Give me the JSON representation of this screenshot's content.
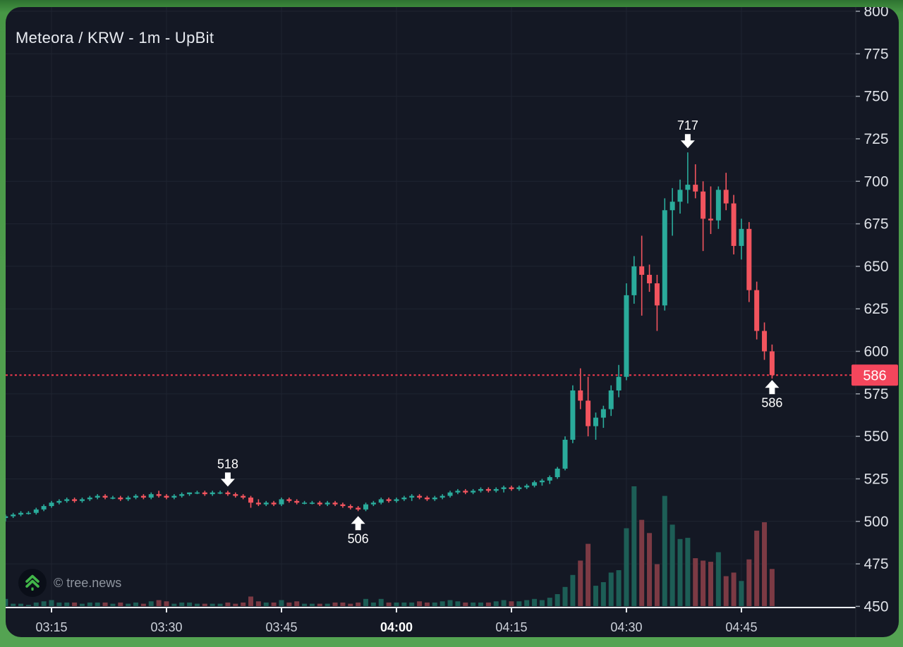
{
  "header": {
    "title": "Meteora / KRW - 1m - UpBit"
  },
  "watermark": {
    "text": "© tree.news",
    "logo": "tree-chevrons-icon"
  },
  "chart_data": {
    "type": "candlestick",
    "symbol": "Meteora / KRW",
    "interval": "1m",
    "exchange": "UpBit",
    "title": "Meteora / KRW - 1m - UpBit",
    "last_price": 586,
    "last_price_label": "586",
    "y_axis": {
      "min": 450,
      "max": 800,
      "step": 25,
      "ticks": [
        800,
        775,
        750,
        725,
        700,
        675,
        650,
        625,
        600,
        575,
        550,
        525,
        500,
        475,
        450
      ]
    },
    "x_axis": {
      "ticks": [
        {
          "label": "03:15",
          "bold": false
        },
        {
          "label": "03:30",
          "bold": false
        },
        {
          "label": "03:45",
          "bold": false
        },
        {
          "label": "04:00",
          "bold": true
        },
        {
          "label": "04:15",
          "bold": false
        },
        {
          "label": "04:30",
          "bold": false
        },
        {
          "label": "04:45",
          "bold": false
        }
      ]
    },
    "annotations": [
      {
        "text": "717",
        "time": "04:38",
        "price": 717,
        "direction": "down"
      },
      {
        "text": "518",
        "time": "03:38",
        "price": 518,
        "direction": "down"
      },
      {
        "text": "506",
        "time": "03:55",
        "price": 506,
        "direction": "up"
      },
      {
        "text": "586",
        "time": "04:49",
        "price": 586,
        "direction": "up"
      }
    ],
    "colors": {
      "background": "#141824",
      "grid": "#1f2431",
      "axis_line": "#eceef2",
      "up": "#2aab9b",
      "down": "#f2545e",
      "volume_up": "#1d5e56",
      "volume_down": "#7c3a44",
      "dotted_line": "#f43a4e",
      "badge_bg": "#f4465c",
      "badge_text": "#ffffff",
      "y_label": "#dfe2e8",
      "x_label": "#ccd0d9",
      "x_label_bold": "#ffffff",
      "annotation": "#ffffff"
    },
    "candles": [
      [
        "03:09",
        502,
        504,
        500,
        503,
        6
      ],
      [
        "03:10",
        503,
        505,
        502,
        504,
        2
      ],
      [
        "03:11",
        504,
        506,
        503,
        505,
        2
      ],
      [
        "03:12",
        505,
        506,
        504,
        505,
        1
      ],
      [
        "03:13",
        505,
        508,
        504,
        507,
        3
      ],
      [
        "03:14",
        507,
        510,
        506,
        509,
        4
      ],
      [
        "03:15",
        509,
        512,
        508,
        511,
        5
      ],
      [
        "03:16",
        511,
        513,
        510,
        512,
        3
      ],
      [
        "03:17",
        512,
        514,
        511,
        513,
        3
      ],
      [
        "03:18",
        513,
        514,
        511,
        512,
        3
      ],
      [
        "03:19",
        512,
        514,
        511,
        513,
        2
      ],
      [
        "03:20",
        513,
        515,
        512,
        514,
        3
      ],
      [
        "03:21",
        514,
        516,
        513,
        515,
        3
      ],
      [
        "03:22",
        515,
        516,
        513,
        514,
        3
      ],
      [
        "03:23",
        514,
        515,
        513,
        514,
        2
      ],
      [
        "03:24",
        514,
        515,
        512,
        513,
        3
      ],
      [
        "03:25",
        513,
        515,
        512,
        514,
        2
      ],
      [
        "03:26",
        514,
        516,
        513,
        515,
        3
      ],
      [
        "03:27",
        515,
        516,
        513,
        514,
        2
      ],
      [
        "03:28",
        514,
        517,
        513,
        516,
        4
      ],
      [
        "03:29",
        516,
        518,
        514,
        515,
        5
      ],
      [
        "03:30",
        515,
        516,
        513,
        514,
        4
      ],
      [
        "03:31",
        514,
        516,
        513,
        515,
        2
      ],
      [
        "03:32",
        515,
        517,
        514,
        516,
        3
      ],
      [
        "03:33",
        516,
        517,
        515,
        517,
        3
      ],
      [
        "03:34",
        517,
        518,
        516,
        517,
        2
      ],
      [
        "03:35",
        517,
        518,
        515,
        516,
        2
      ],
      [
        "03:36",
        516,
        518,
        515,
        517,
        2
      ],
      [
        "03:37",
        517,
        518,
        516,
        517,
        2
      ],
      [
        "03:38",
        517,
        518,
        515,
        516,
        3
      ],
      [
        "03:39",
        516,
        517,
        514,
        515,
        2
      ],
      [
        "03:40",
        515,
        516,
        513,
        514,
        3
      ],
      [
        "03:41",
        514,
        515,
        508,
        511,
        8
      ],
      [
        "03:42",
        511,
        513,
        509,
        510,
        4
      ],
      [
        "03:43",
        510,
        512,
        509,
        511,
        3
      ],
      [
        "03:44",
        511,
        512,
        509,
        510,
        3
      ],
      [
        "03:45",
        510,
        514,
        509,
        513,
        5
      ],
      [
        "03:46",
        513,
        514,
        511,
        512,
        3
      ],
      [
        "03:47",
        512,
        513,
        510,
        511,
        4
      ],
      [
        "03:48",
        511,
        512,
        510,
        511,
        2
      ],
      [
        "03:49",
        511,
        512,
        510,
        511,
        2
      ],
      [
        "03:50",
        511,
        512,
        509,
        510,
        2
      ],
      [
        "03:51",
        510,
        512,
        509,
        511,
        2
      ],
      [
        "03:52",
        511,
        512,
        509,
        510,
        3
      ],
      [
        "03:53",
        510,
        511,
        508,
        509,
        3
      ],
      [
        "03:54",
        509,
        510,
        507,
        508,
        2
      ],
      [
        "03:55",
        508,
        509,
        506,
        507,
        3
      ],
      [
        "03:56",
        507,
        511,
        506,
        510,
        6
      ],
      [
        "03:57",
        510,
        512,
        509,
        511,
        3
      ],
      [
        "03:58",
        511,
        514,
        510,
        513,
        6
      ],
      [
        "03:59",
        513,
        514,
        511,
        512,
        3
      ],
      [
        "04:00",
        512,
        514,
        511,
        513,
        3
      ],
      [
        "04:01",
        513,
        515,
        512,
        514,
        3
      ],
      [
        "04:02",
        514,
        516,
        512,
        515,
        3
      ],
      [
        "04:03",
        515,
        516,
        513,
        514,
        4
      ],
      [
        "04:04",
        514,
        515,
        512,
        513,
        3
      ],
      [
        "04:05",
        513,
        515,
        512,
        514,
        3
      ],
      [
        "04:06",
        514,
        516,
        513,
        515,
        4
      ],
      [
        "04:07",
        515,
        518,
        514,
        517,
        5
      ],
      [
        "04:08",
        517,
        519,
        516,
        518,
        4
      ],
      [
        "04:09",
        518,
        519,
        516,
        517,
        3
      ],
      [
        "04:10",
        517,
        519,
        516,
        518,
        3
      ],
      [
        "04:11",
        518,
        520,
        517,
        519,
        3
      ],
      [
        "04:12",
        519,
        520,
        517,
        518,
        3
      ],
      [
        "04:13",
        518,
        520,
        517,
        519,
        4
      ],
      [
        "04:14",
        519,
        521,
        517,
        520,
        5
      ],
      [
        "04:15",
        520,
        521,
        518,
        519,
        4
      ],
      [
        "04:16",
        519,
        521,
        518,
        520,
        4
      ],
      [
        "04:17",
        520,
        522,
        519,
        521,
        5
      ],
      [
        "04:18",
        521,
        524,
        520,
        523,
        6
      ],
      [
        "04:19",
        523,
        525,
        521,
        524,
        5
      ],
      [
        "04:20",
        524,
        527,
        522,
        526,
        7
      ],
      [
        "04:21",
        526,
        532,
        525,
        531,
        10
      ],
      [
        "04:22",
        531,
        550,
        530,
        548,
        16
      ],
      [
        "04:23",
        548,
        580,
        546,
        577,
        26
      ],
      [
        "04:24",
        577,
        590,
        566,
        571,
        38
      ],
      [
        "04:25",
        571,
        585,
        550,
        556,
        52
      ],
      [
        "04:26",
        556,
        564,
        548,
        561,
        17
      ],
      [
        "04:27",
        561,
        568,
        555,
        566,
        20
      ],
      [
        "04:28",
        566,
        580,
        562,
        577,
        28
      ],
      [
        "04:29",
        577,
        592,
        573,
        585,
        30
      ],
      [
        "04:30",
        585,
        640,
        583,
        633,
        65
      ],
      [
        "04:31",
        633,
        656,
        628,
        650,
        100
      ],
      [
        "04:32",
        650,
        668,
        621,
        645,
        72
      ],
      [
        "04:33",
        645,
        651,
        635,
        640,
        61
      ],
      [
        "04:34",
        640,
        645,
        612,
        627,
        35
      ],
      [
        "04:35",
        627,
        690,
        624,
        683,
        92
      ],
      [
        "04:36",
        683,
        696,
        668,
        688,
        68
      ],
      [
        "04:37",
        688,
        701,
        681,
        695,
        56
      ],
      [
        "04:38",
        695,
        717,
        687,
        698,
        57
      ],
      [
        "04:39",
        698,
        710,
        690,
        694,
        40
      ],
      [
        "04:40",
        694,
        700,
        659,
        678,
        38
      ],
      [
        "04:41",
        678,
        697,
        669,
        677,
        37
      ],
      [
        "04:42",
        677,
        697,
        672,
        695,
        45
      ],
      [
        "04:43",
        695,
        705,
        683,
        687,
        25
      ],
      [
        "04:44",
        687,
        692,
        657,
        662,
        28
      ],
      [
        "04:45",
        662,
        678,
        654,
        672,
        21
      ],
      [
        "04:46",
        672,
        676,
        629,
        636,
        39
      ],
      [
        "04:47",
        636,
        641,
        607,
        612,
        63
      ],
      [
        "04:48",
        612,
        617,
        595,
        600,
        70
      ],
      [
        "04:49",
        600,
        604,
        584,
        586,
        31
      ]
    ]
  }
}
